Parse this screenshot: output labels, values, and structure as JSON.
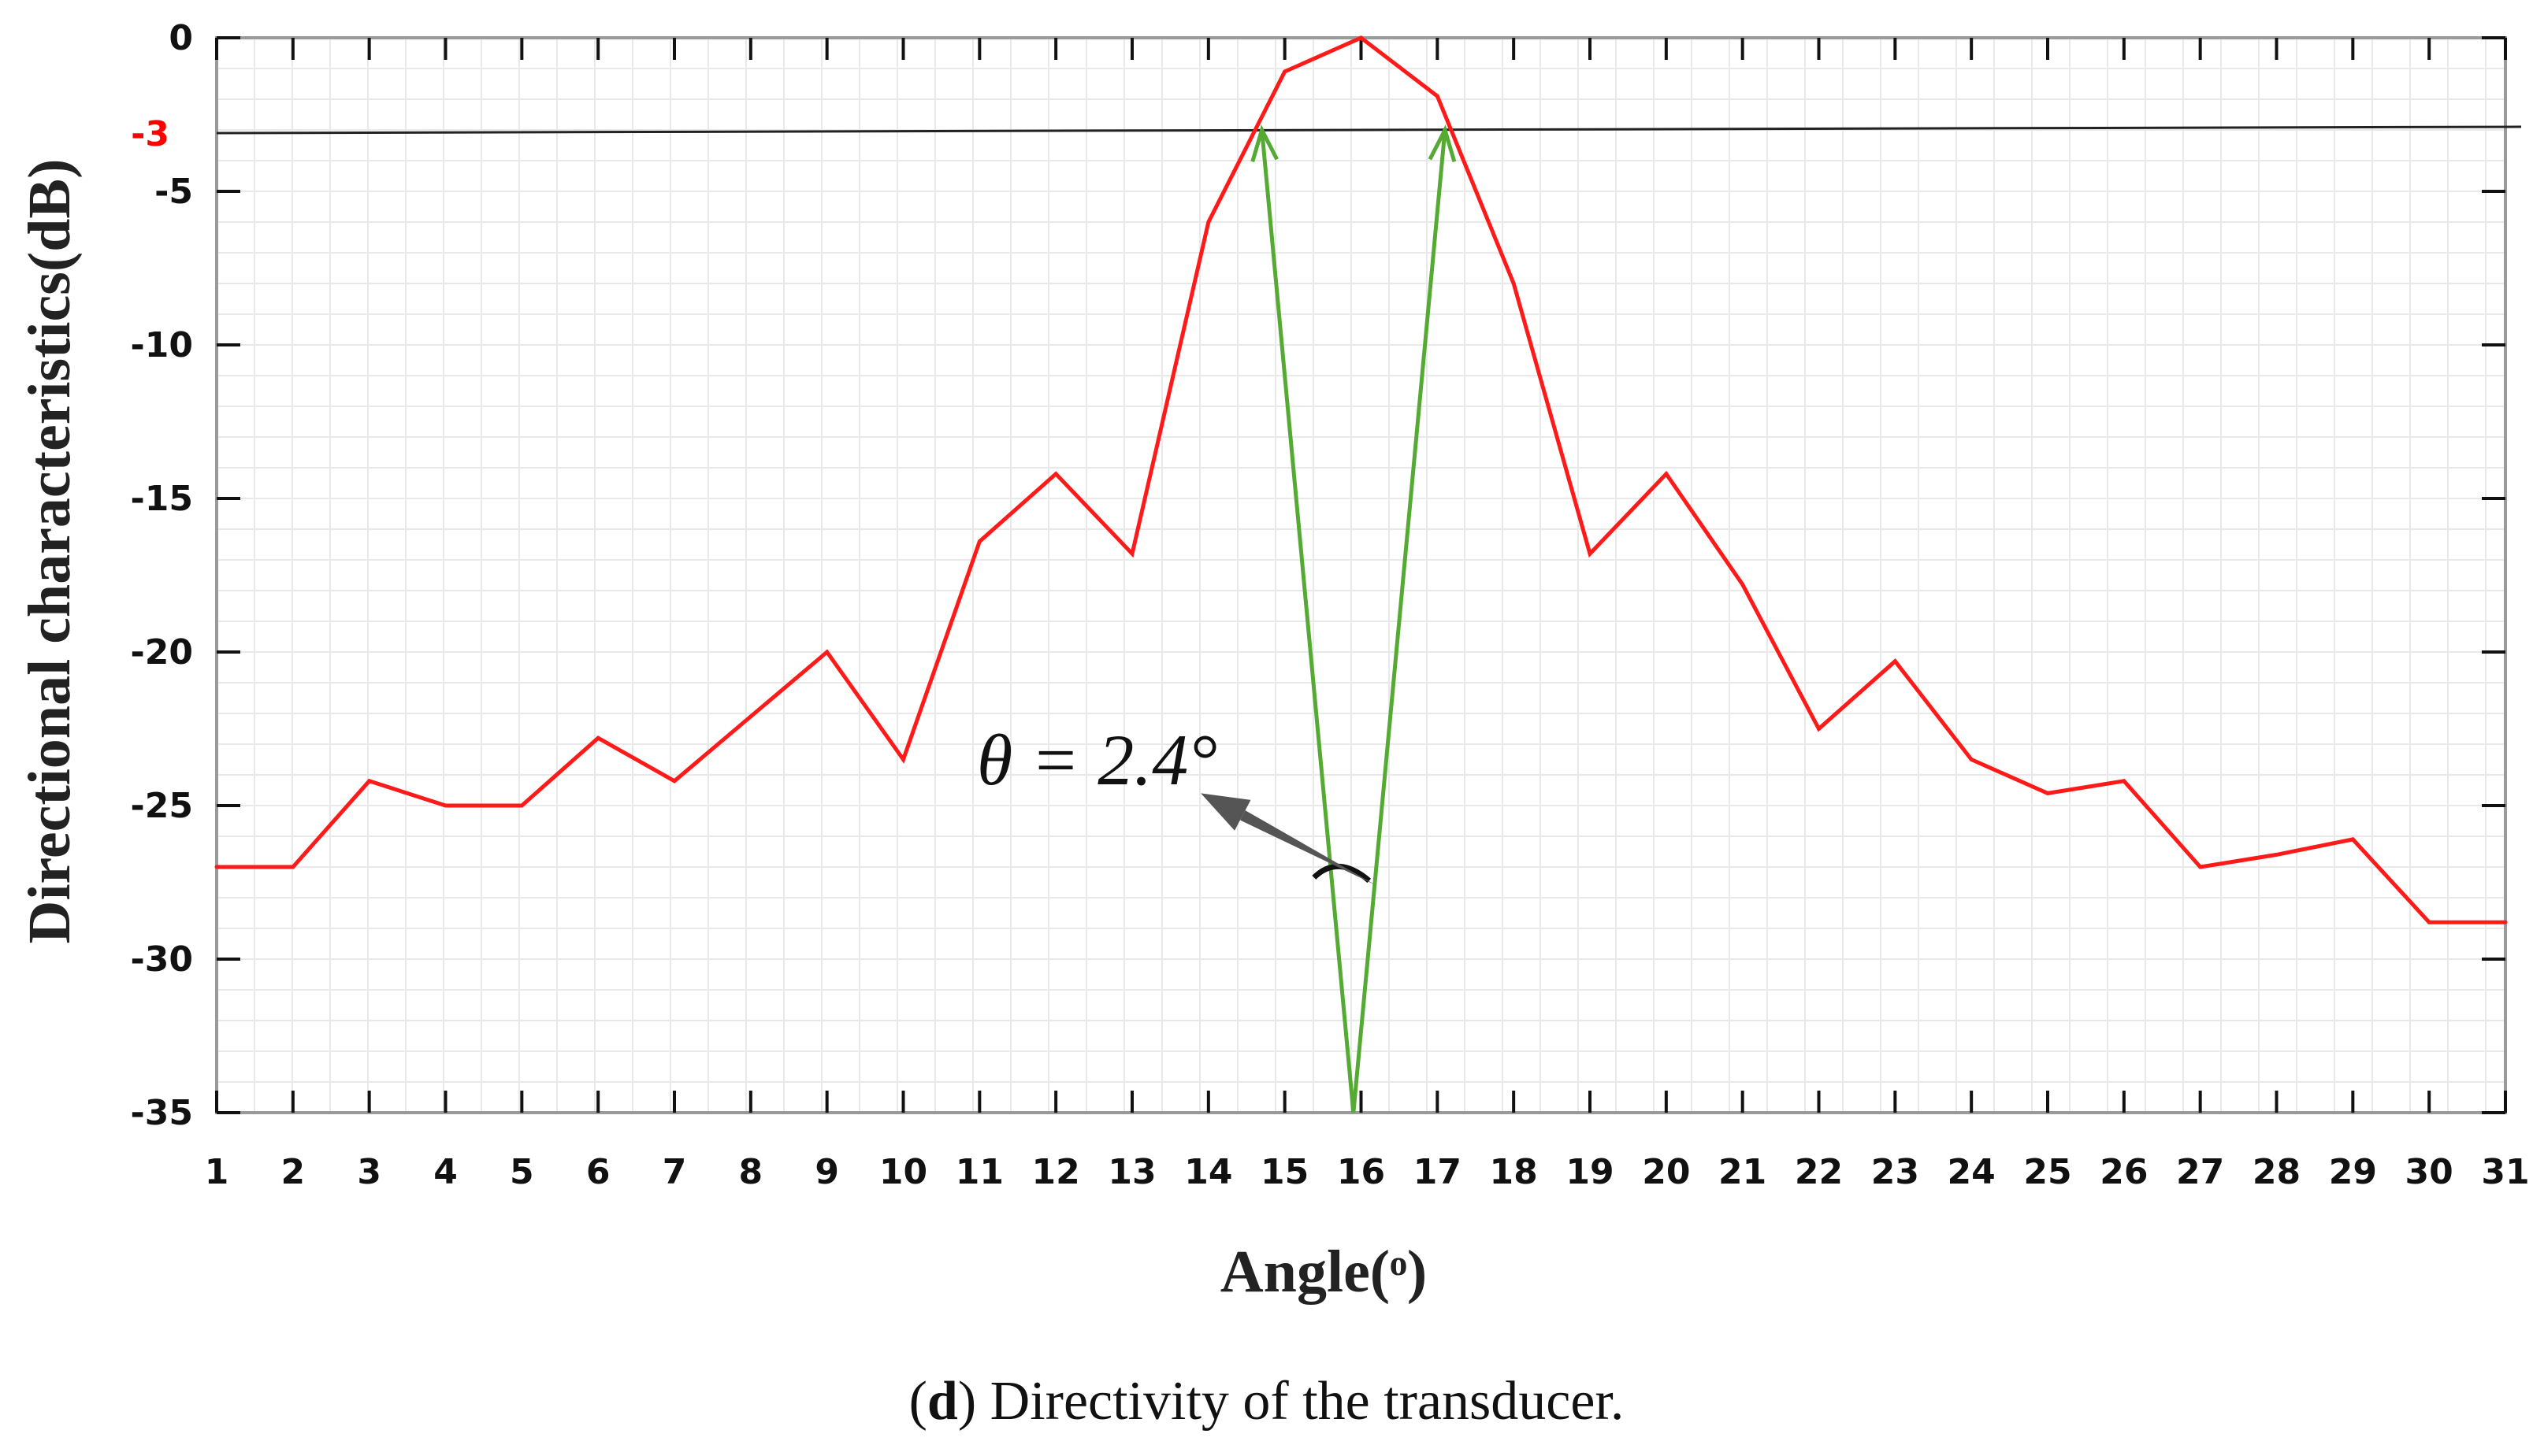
{
  "caption": {
    "letter": "d",
    "text": "Directivity of the transducer."
  },
  "chart_data": {
    "type": "line",
    "xlabel": "Angle(ᵒ)",
    "ylabel": "Directional characteristics(dB)",
    "x": [
      1,
      2,
      3,
      4,
      5,
      6,
      7,
      8,
      9,
      10,
      11,
      12,
      13,
      14,
      15,
      16,
      17,
      18,
      19,
      20,
      21,
      22,
      23,
      24,
      25,
      26,
      27,
      28,
      29,
      30,
      31
    ],
    "x_tick_labels": [
      "1",
      "2",
      "3",
      "4",
      "5",
      "6",
      "7",
      "8",
      "9",
      "10",
      "11",
      "12",
      "13",
      "14",
      "15",
      "16",
      "17",
      "18",
      "19",
      "20",
      "21",
      "22",
      "23",
      "24",
      "25",
      "26",
      "27",
      "28",
      "29",
      "30",
      "31"
    ],
    "xlim": [
      1,
      31
    ],
    "ylim": [
      -35,
      0
    ],
    "y_tick_labels": [
      "0",
      "-5",
      "-10",
      "-15",
      "-20",
      "-25",
      "-30",
      "-35"
    ],
    "y_ticks": [
      0,
      -5,
      -10,
      -15,
      -20,
      -25,
      -30,
      -35
    ],
    "grid": true,
    "series": [
      {
        "color": "#ff1a1a",
        "values": [
          -27,
          -27,
          -24.2,
          -25,
          -25,
          -22.8,
          -24.2,
          -22.1,
          -20,
          -23.5,
          -16.4,
          -14.2,
          -16.8,
          -6,
          -1.1,
          0,
          -1.9,
          -8,
          -16.8,
          -14.2,
          -17.8,
          -22.5,
          -20.3,
          -23.5,
          -24.6,
          -24.2,
          -27,
          -26.6,
          -26.1,
          -28.8,
          -28.8
        ]
      }
    ],
    "reference_line": {
      "y": -3,
      "label": "-3",
      "label_color": "#ff0000",
      "color": "#222222"
    },
    "beam_arrows": {
      "color": "#55aa33",
      "vertex": {
        "x": 15.9,
        "y": -35
      },
      "targets": [
        {
          "x": 14.7,
          "y": -3
        },
        {
          "x": 17.1,
          "y": -3
        }
      ]
    },
    "annotation": {
      "text": "θ = 2.4°",
      "pointer_from": {
        "x": 16.2,
        "y": -27.6
      },
      "pointer_to": {
        "x": 13.9,
        "y": -24.6
      }
    }
  }
}
